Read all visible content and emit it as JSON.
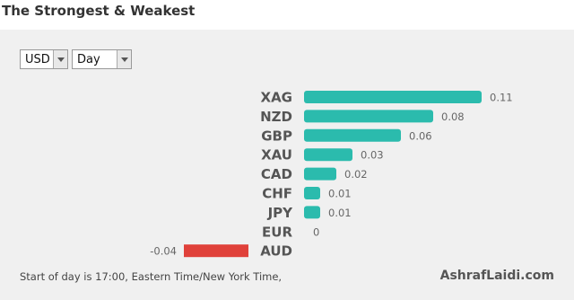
{
  "chart_data": {
    "type": "bar",
    "orientation": "horizontal",
    "title": "The Strongest & Weakest",
    "controls": {
      "currency": "USD",
      "period": "Day"
    },
    "categories": [
      "XAG",
      "NZD",
      "GBP",
      "XAU",
      "CAD",
      "CHF",
      "JPY",
      "EUR",
      "AUD"
    ],
    "values": [
      0.11,
      0.08,
      0.06,
      0.03,
      0.02,
      0.01,
      0.01,
      0,
      -0.04
    ],
    "positive_color": "#2bbbad",
    "negative_color": "#e0413a",
    "footer": "Start of day is 17:00, Eastern Time/New York Time,",
    "brand": "AshrafLaidi.com"
  }
}
